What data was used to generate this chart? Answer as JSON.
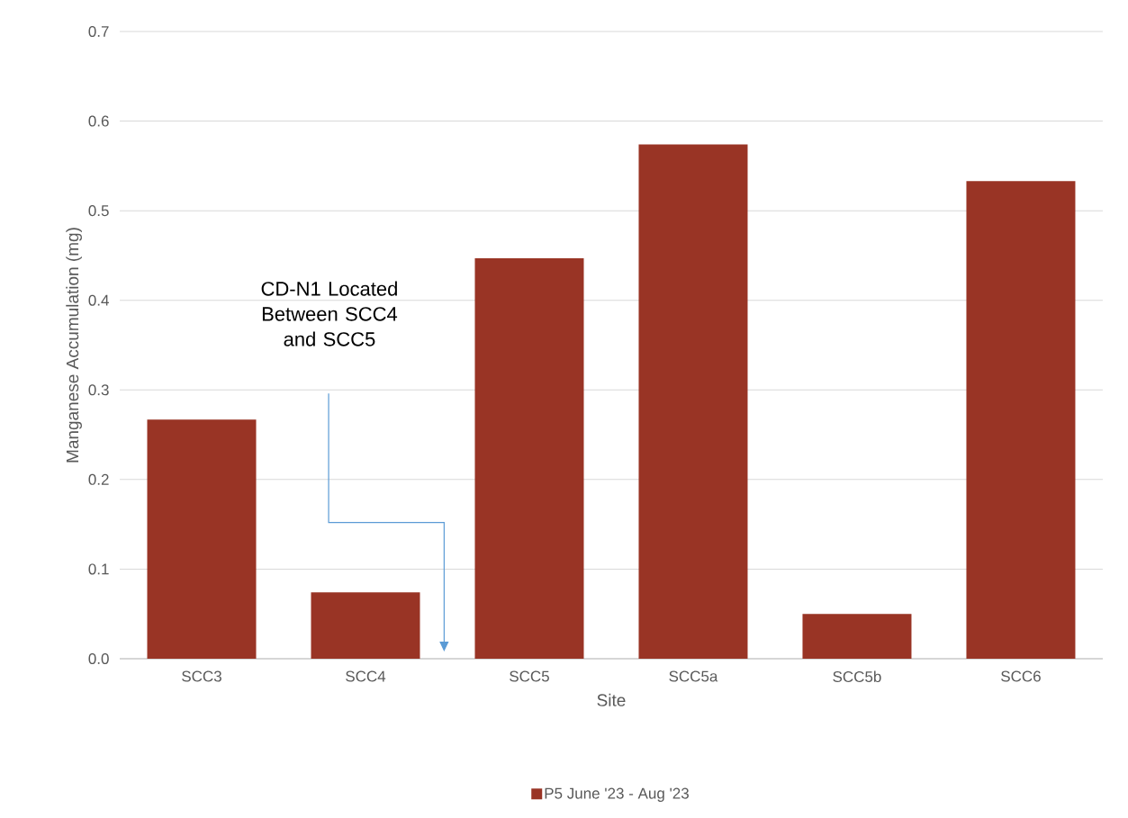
{
  "chart_data": {
    "type": "bar",
    "xlabel": "Site",
    "ylabel": "Manganese Accumulation (mg)",
    "categories": [
      "SCC3",
      "SCC4",
      "SCC5",
      "SCC5a",
      "SCC5b",
      "SCC6"
    ],
    "series": [
      {
        "name": "P5 June '23 - Aug '23",
        "color": "#993425",
        "values": [
          0.267,
          0.074,
          0.447,
          0.574,
          0.05,
          0.533
        ]
      }
    ],
    "ylim": [
      0,
      0.7
    ],
    "yticks": [
      {
        "value": 0,
        "label": "0.0"
      },
      0.1,
      0.2,
      0.3,
      0.4,
      0.5,
      0.6,
      0.7
    ],
    "grid": "y",
    "legend": "bottom",
    "annotations": [
      "CD-N1 Located Between SCC4 and SCC5"
    ]
  }
}
